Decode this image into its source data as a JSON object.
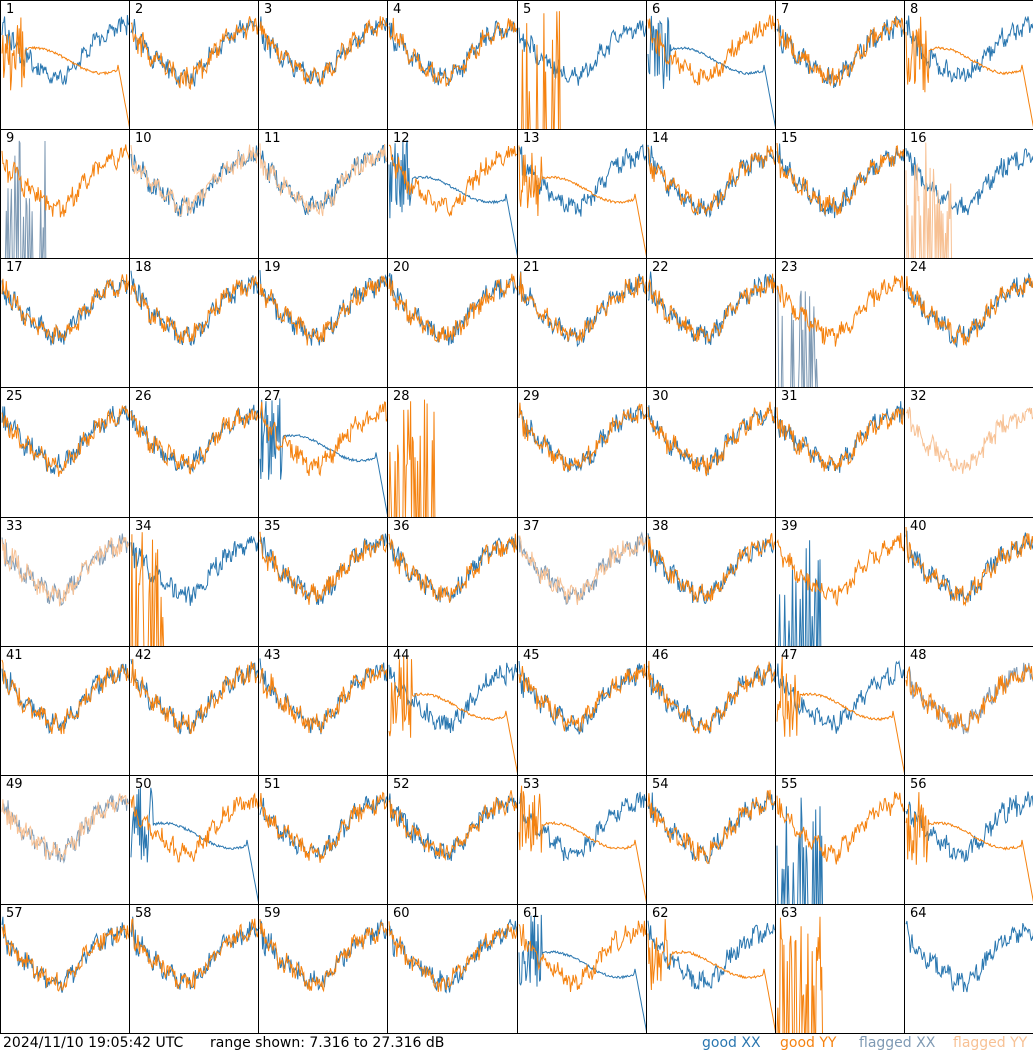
{
  "footer": {
    "timestamp": "2024/11/10 19:05:42 UTC",
    "range_text": "range shown: 7.316 to 27.316 dB"
  },
  "legend": [
    {
      "word": "good",
      "pol": "XX",
      "color": "#2a77b0"
    },
    {
      "word": "good",
      "pol": "YY",
      "color": "#f5820f"
    },
    {
      "word": "flagged",
      "pol": "XX",
      "color": "#7f9ab4"
    },
    {
      "word": "flagged",
      "pol": "YY",
      "color": "#f7c194"
    }
  ],
  "colors": {
    "good_xx": "#2a77b0",
    "good_yy": "#f5820f",
    "flagged_xx": "#7f9ab4",
    "flagged_yy": "#f7c194"
  },
  "chart_data": {
    "type": "line",
    "grid": {
      "rows": 8,
      "cols": 8
    },
    "ylim": [
      7.316,
      27.316
    ],
    "y_units": "dB",
    "panel_labels": [
      "1",
      "2",
      "3",
      "4",
      "5",
      "6",
      "7",
      "8",
      "9",
      "10",
      "11",
      "12",
      "13",
      "14",
      "15",
      "16",
      "17",
      "18",
      "19",
      "20",
      "21",
      "22",
      "23",
      "24",
      "25",
      "26",
      "27",
      "28",
      "29",
      "30",
      "31",
      "32",
      "33",
      "34",
      "35",
      "36",
      "37",
      "38",
      "39",
      "40",
      "41",
      "42",
      "43",
      "44",
      "45",
      "46",
      "47",
      "48",
      "49",
      "50",
      "51",
      "52",
      "53",
      "54",
      "55",
      "56",
      "57",
      "58",
      "59",
      "60",
      "61",
      "62",
      "63",
      "64"
    ],
    "panels": [
      {
        "id": "1",
        "xx": "good",
        "yy": "good",
        "xx_shape": "normal",
        "yy_shape": "rolloff"
      },
      {
        "id": "2",
        "xx": "good",
        "yy": "good",
        "xx_shape": "normal",
        "yy_shape": "normal"
      },
      {
        "id": "3",
        "xx": "good",
        "yy": "good",
        "xx_shape": "normal",
        "yy_shape": "normal"
      },
      {
        "id": "4",
        "xx": "good",
        "yy": "good",
        "xx_shape": "normal",
        "yy_shape": "normal"
      },
      {
        "id": "5",
        "xx": "good",
        "yy": "good",
        "xx_shape": "normal",
        "yy_shape": "spikes"
      },
      {
        "id": "6",
        "xx": "good",
        "yy": "good",
        "xx_shape": "rolloff",
        "yy_shape": "normal"
      },
      {
        "id": "7",
        "xx": "good",
        "yy": "good",
        "xx_shape": "normal",
        "yy_shape": "normal"
      },
      {
        "id": "8",
        "xx": "good",
        "yy": "good",
        "xx_shape": "normal",
        "yy_shape": "rolloff"
      },
      {
        "id": "9",
        "xx": "flagged",
        "yy": "good",
        "xx_shape": "spikes",
        "yy_shape": "normal"
      },
      {
        "id": "10",
        "xx": "good",
        "yy": "flagged",
        "xx_shape": "normal",
        "yy_shape": "normal"
      },
      {
        "id": "11",
        "xx": "good",
        "yy": "flagged",
        "xx_shape": "normal",
        "yy_shape": "normal"
      },
      {
        "id": "12",
        "xx": "good",
        "yy": "good",
        "xx_shape": "rolloff",
        "yy_shape": "normal"
      },
      {
        "id": "13",
        "xx": "good",
        "yy": "good",
        "xx_shape": "normal",
        "yy_shape": "rolloff"
      },
      {
        "id": "14",
        "xx": "good",
        "yy": "good",
        "xx_shape": "normal",
        "yy_shape": "normal"
      },
      {
        "id": "15",
        "xx": "good",
        "yy": "good",
        "xx_shape": "normal",
        "yy_shape": "normal"
      },
      {
        "id": "16",
        "xx": "good",
        "yy": "flagged",
        "xx_shape": "normal",
        "yy_shape": "spikes"
      },
      {
        "id": "17",
        "xx": "good",
        "yy": "good",
        "xx_shape": "normal",
        "yy_shape": "normal"
      },
      {
        "id": "18",
        "xx": "good",
        "yy": "good",
        "xx_shape": "normal",
        "yy_shape": "normal"
      },
      {
        "id": "19",
        "xx": "good",
        "yy": "good",
        "xx_shape": "normal",
        "yy_shape": "normal"
      },
      {
        "id": "20",
        "xx": "good",
        "yy": "good",
        "xx_shape": "normal",
        "yy_shape": "normal"
      },
      {
        "id": "21",
        "xx": "good",
        "yy": "good",
        "xx_shape": "normal",
        "yy_shape": "normal"
      },
      {
        "id": "22",
        "xx": "good",
        "yy": "good",
        "xx_shape": "normal",
        "yy_shape": "normal"
      },
      {
        "id": "23",
        "xx": "flagged",
        "yy": "good",
        "xx_shape": "spikes",
        "yy_shape": "normal"
      },
      {
        "id": "24",
        "xx": "good",
        "yy": "good",
        "xx_shape": "normal",
        "yy_shape": "normal"
      },
      {
        "id": "25",
        "xx": "good",
        "yy": "good",
        "xx_shape": "normal",
        "yy_shape": "normal"
      },
      {
        "id": "26",
        "xx": "good",
        "yy": "good",
        "xx_shape": "normal",
        "yy_shape": "normal"
      },
      {
        "id": "27",
        "xx": "good",
        "yy": "good",
        "xx_shape": "rolloff",
        "yy_shape": "normal"
      },
      {
        "id": "28",
        "xx": "good",
        "yy": "good",
        "xx_shape": "none",
        "yy_shape": "spikes"
      },
      {
        "id": "29",
        "xx": "good",
        "yy": "good",
        "xx_shape": "normal",
        "yy_shape": "normal"
      },
      {
        "id": "30",
        "xx": "good",
        "yy": "good",
        "xx_shape": "normal",
        "yy_shape": "normal"
      },
      {
        "id": "31",
        "xx": "good",
        "yy": "good",
        "xx_shape": "normal",
        "yy_shape": "normal"
      },
      {
        "id": "32",
        "xx": "flagged",
        "yy": "flagged",
        "xx_shape": "none",
        "yy_shape": "normal"
      },
      {
        "id": "33",
        "xx": "flagged",
        "yy": "flagged",
        "xx_shape": "normal",
        "yy_shape": "normal"
      },
      {
        "id": "34",
        "xx": "good",
        "yy": "good",
        "xx_shape": "normal",
        "yy_shape": "spikes"
      },
      {
        "id": "35",
        "xx": "good",
        "yy": "good",
        "xx_shape": "normal",
        "yy_shape": "normal"
      },
      {
        "id": "36",
        "xx": "good",
        "yy": "good",
        "xx_shape": "normal",
        "yy_shape": "normal"
      },
      {
        "id": "37",
        "xx": "flagged",
        "yy": "flagged",
        "xx_shape": "normal",
        "yy_shape": "normal"
      },
      {
        "id": "38",
        "xx": "good",
        "yy": "good",
        "xx_shape": "normal",
        "yy_shape": "normal"
      },
      {
        "id": "39",
        "xx": "good",
        "yy": "good",
        "xx_shape": "spikes",
        "yy_shape": "normal"
      },
      {
        "id": "40",
        "xx": "good",
        "yy": "good",
        "xx_shape": "normal",
        "yy_shape": "normal"
      },
      {
        "id": "41",
        "xx": "good",
        "yy": "good",
        "xx_shape": "normal",
        "yy_shape": "normal"
      },
      {
        "id": "42",
        "xx": "good",
        "yy": "good",
        "xx_shape": "normal",
        "yy_shape": "normal"
      },
      {
        "id": "43",
        "xx": "good",
        "yy": "good",
        "xx_shape": "normal",
        "yy_shape": "normal"
      },
      {
        "id": "44",
        "xx": "good",
        "yy": "good",
        "xx_shape": "normal",
        "yy_shape": "rolloff"
      },
      {
        "id": "45",
        "xx": "good",
        "yy": "good",
        "xx_shape": "normal",
        "yy_shape": "normal"
      },
      {
        "id": "46",
        "xx": "good",
        "yy": "good",
        "xx_shape": "normal",
        "yy_shape": "normal"
      },
      {
        "id": "47",
        "xx": "good",
        "yy": "good",
        "xx_shape": "normal",
        "yy_shape": "rolloff"
      },
      {
        "id": "48",
        "xx": "flagged",
        "yy": "good",
        "xx_shape": "normal",
        "yy_shape": "normal"
      },
      {
        "id": "49",
        "xx": "flagged",
        "yy": "flagged",
        "xx_shape": "normal",
        "yy_shape": "normal"
      },
      {
        "id": "50",
        "xx": "good",
        "yy": "good",
        "xx_shape": "rolloff",
        "yy_shape": "normal"
      },
      {
        "id": "51",
        "xx": "good",
        "yy": "good",
        "xx_shape": "normal",
        "yy_shape": "normal"
      },
      {
        "id": "52",
        "xx": "good",
        "yy": "good",
        "xx_shape": "normal",
        "yy_shape": "normal"
      },
      {
        "id": "53",
        "xx": "good",
        "yy": "good",
        "xx_shape": "normal",
        "yy_shape": "rolloff"
      },
      {
        "id": "54",
        "xx": "good",
        "yy": "good",
        "xx_shape": "normal",
        "yy_shape": "normal"
      },
      {
        "id": "55",
        "xx": "good",
        "yy": "good",
        "xx_shape": "spikes",
        "yy_shape": "normal"
      },
      {
        "id": "56",
        "xx": "good",
        "yy": "good",
        "xx_shape": "normal",
        "yy_shape": "rolloff"
      },
      {
        "id": "57",
        "xx": "good",
        "yy": "good",
        "xx_shape": "normal",
        "yy_shape": "normal"
      },
      {
        "id": "58",
        "xx": "good",
        "yy": "good",
        "xx_shape": "normal",
        "yy_shape": "normal"
      },
      {
        "id": "59",
        "xx": "good",
        "yy": "good",
        "xx_shape": "normal",
        "yy_shape": "normal"
      },
      {
        "id": "60",
        "xx": "good",
        "yy": "good",
        "xx_shape": "normal",
        "yy_shape": "normal"
      },
      {
        "id": "61",
        "xx": "good",
        "yy": "good",
        "xx_shape": "rolloff",
        "yy_shape": "normal"
      },
      {
        "id": "62",
        "xx": "good",
        "yy": "good",
        "xx_shape": "normal",
        "yy_shape": "rolloff"
      },
      {
        "id": "63",
        "xx": "good",
        "yy": "good",
        "xx_shape": "none",
        "yy_shape": "spikes"
      },
      {
        "id": "64",
        "xx": "good",
        "yy": "flagged",
        "xx_shape": "normal",
        "yy_shape": "none"
      }
    ]
  }
}
